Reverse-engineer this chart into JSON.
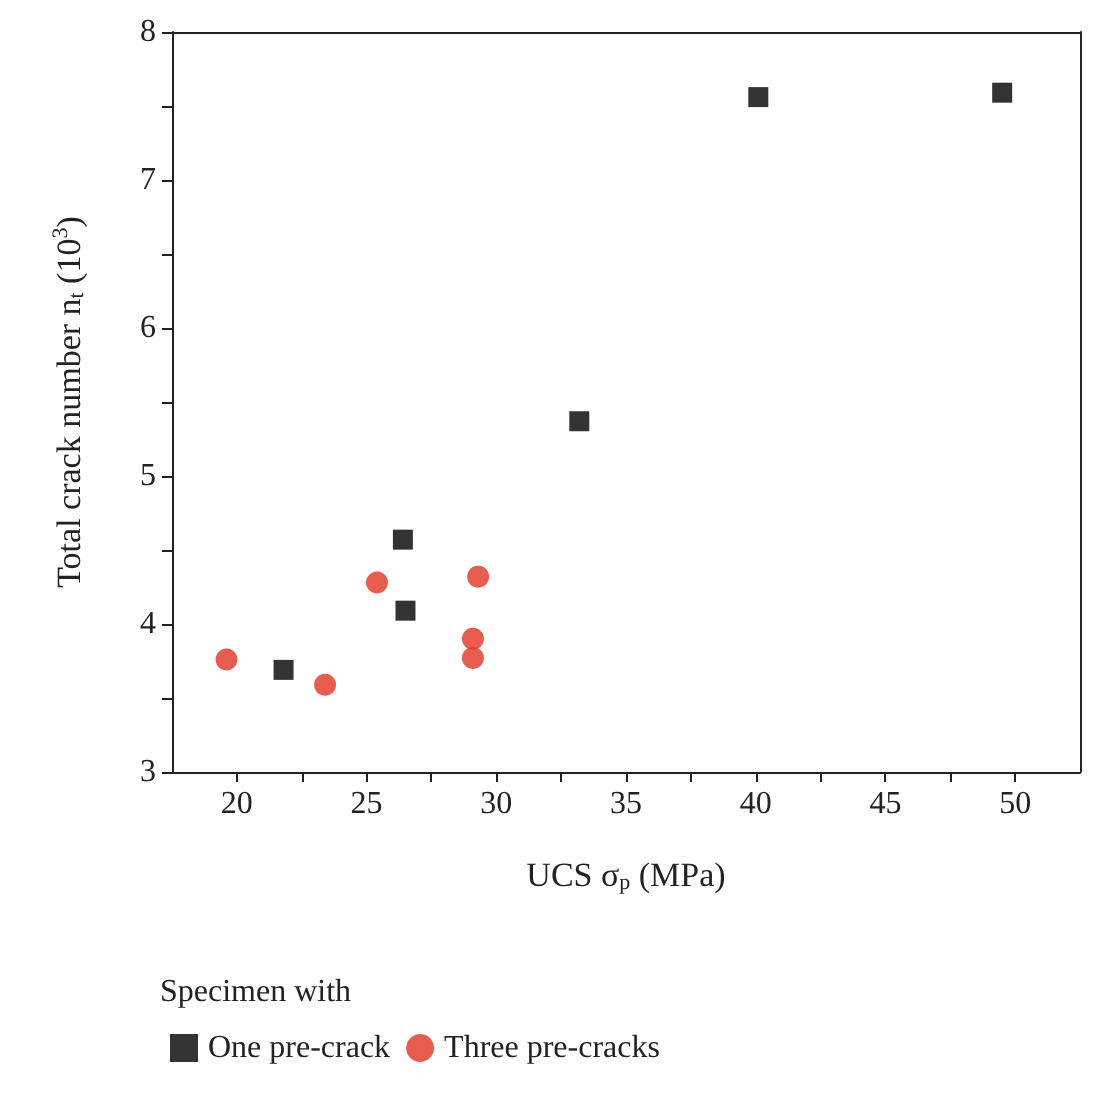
{
  "chart_data": {
    "type": "scatter",
    "xlabel": "UCS σ$_{p}$ (MPa)",
    "ylabel": "Total crack number n$_{t}$ (10$^{3}$)",
    "legend_title": "Specimen with",
    "legend": "bottom left",
    "grid": false,
    "xlim": [
      17.5,
      52.5
    ],
    "xticks": [
      20,
      {
        "value": 22.5,
        "label": null
      },
      25,
      {
        "value": 27.5,
        "label": null
      },
      30,
      {
        "value": 32.5,
        "label": null
      },
      35,
      {
        "value": 37.5,
        "label": null
      },
      40,
      {
        "value": 42.5,
        "label": null
      },
      45,
      {
        "value": 47.5,
        "label": null
      },
      50
    ],
    "ylim": [
      3,
      8
    ],
    "yticks": [
      3,
      {
        "value": 3.5,
        "label": null
      },
      4,
      {
        "value": 4.5,
        "label": null
      },
      5,
      {
        "value": 5.5,
        "label": null
      },
      6,
      {
        "value": 6.5,
        "label": null
      },
      7,
      {
        "value": 7.5,
        "label": null
      },
      8
    ],
    "series": [
      {
        "name": "One pre-crack",
        "color": "#000000",
        "marker": "square",
        "x": [
          21.8,
          26.4,
          26.5,
          33.2,
          40.1,
          49.5
        ],
        "values": [
          3.69,
          4.57,
          4.09,
          5.37,
          7.56,
          7.59
        ]
      },
      {
        "name": "Three pre-cracks",
        "color": "#e03323",
        "marker": "circle",
        "x": [
          19.6,
          23.4,
          25.4,
          29.3,
          29.1,
          29.1
        ],
        "values": [
          3.76,
          3.59,
          4.28,
          4.32,
          3.9,
          3.77
        ]
      }
    ]
  }
}
